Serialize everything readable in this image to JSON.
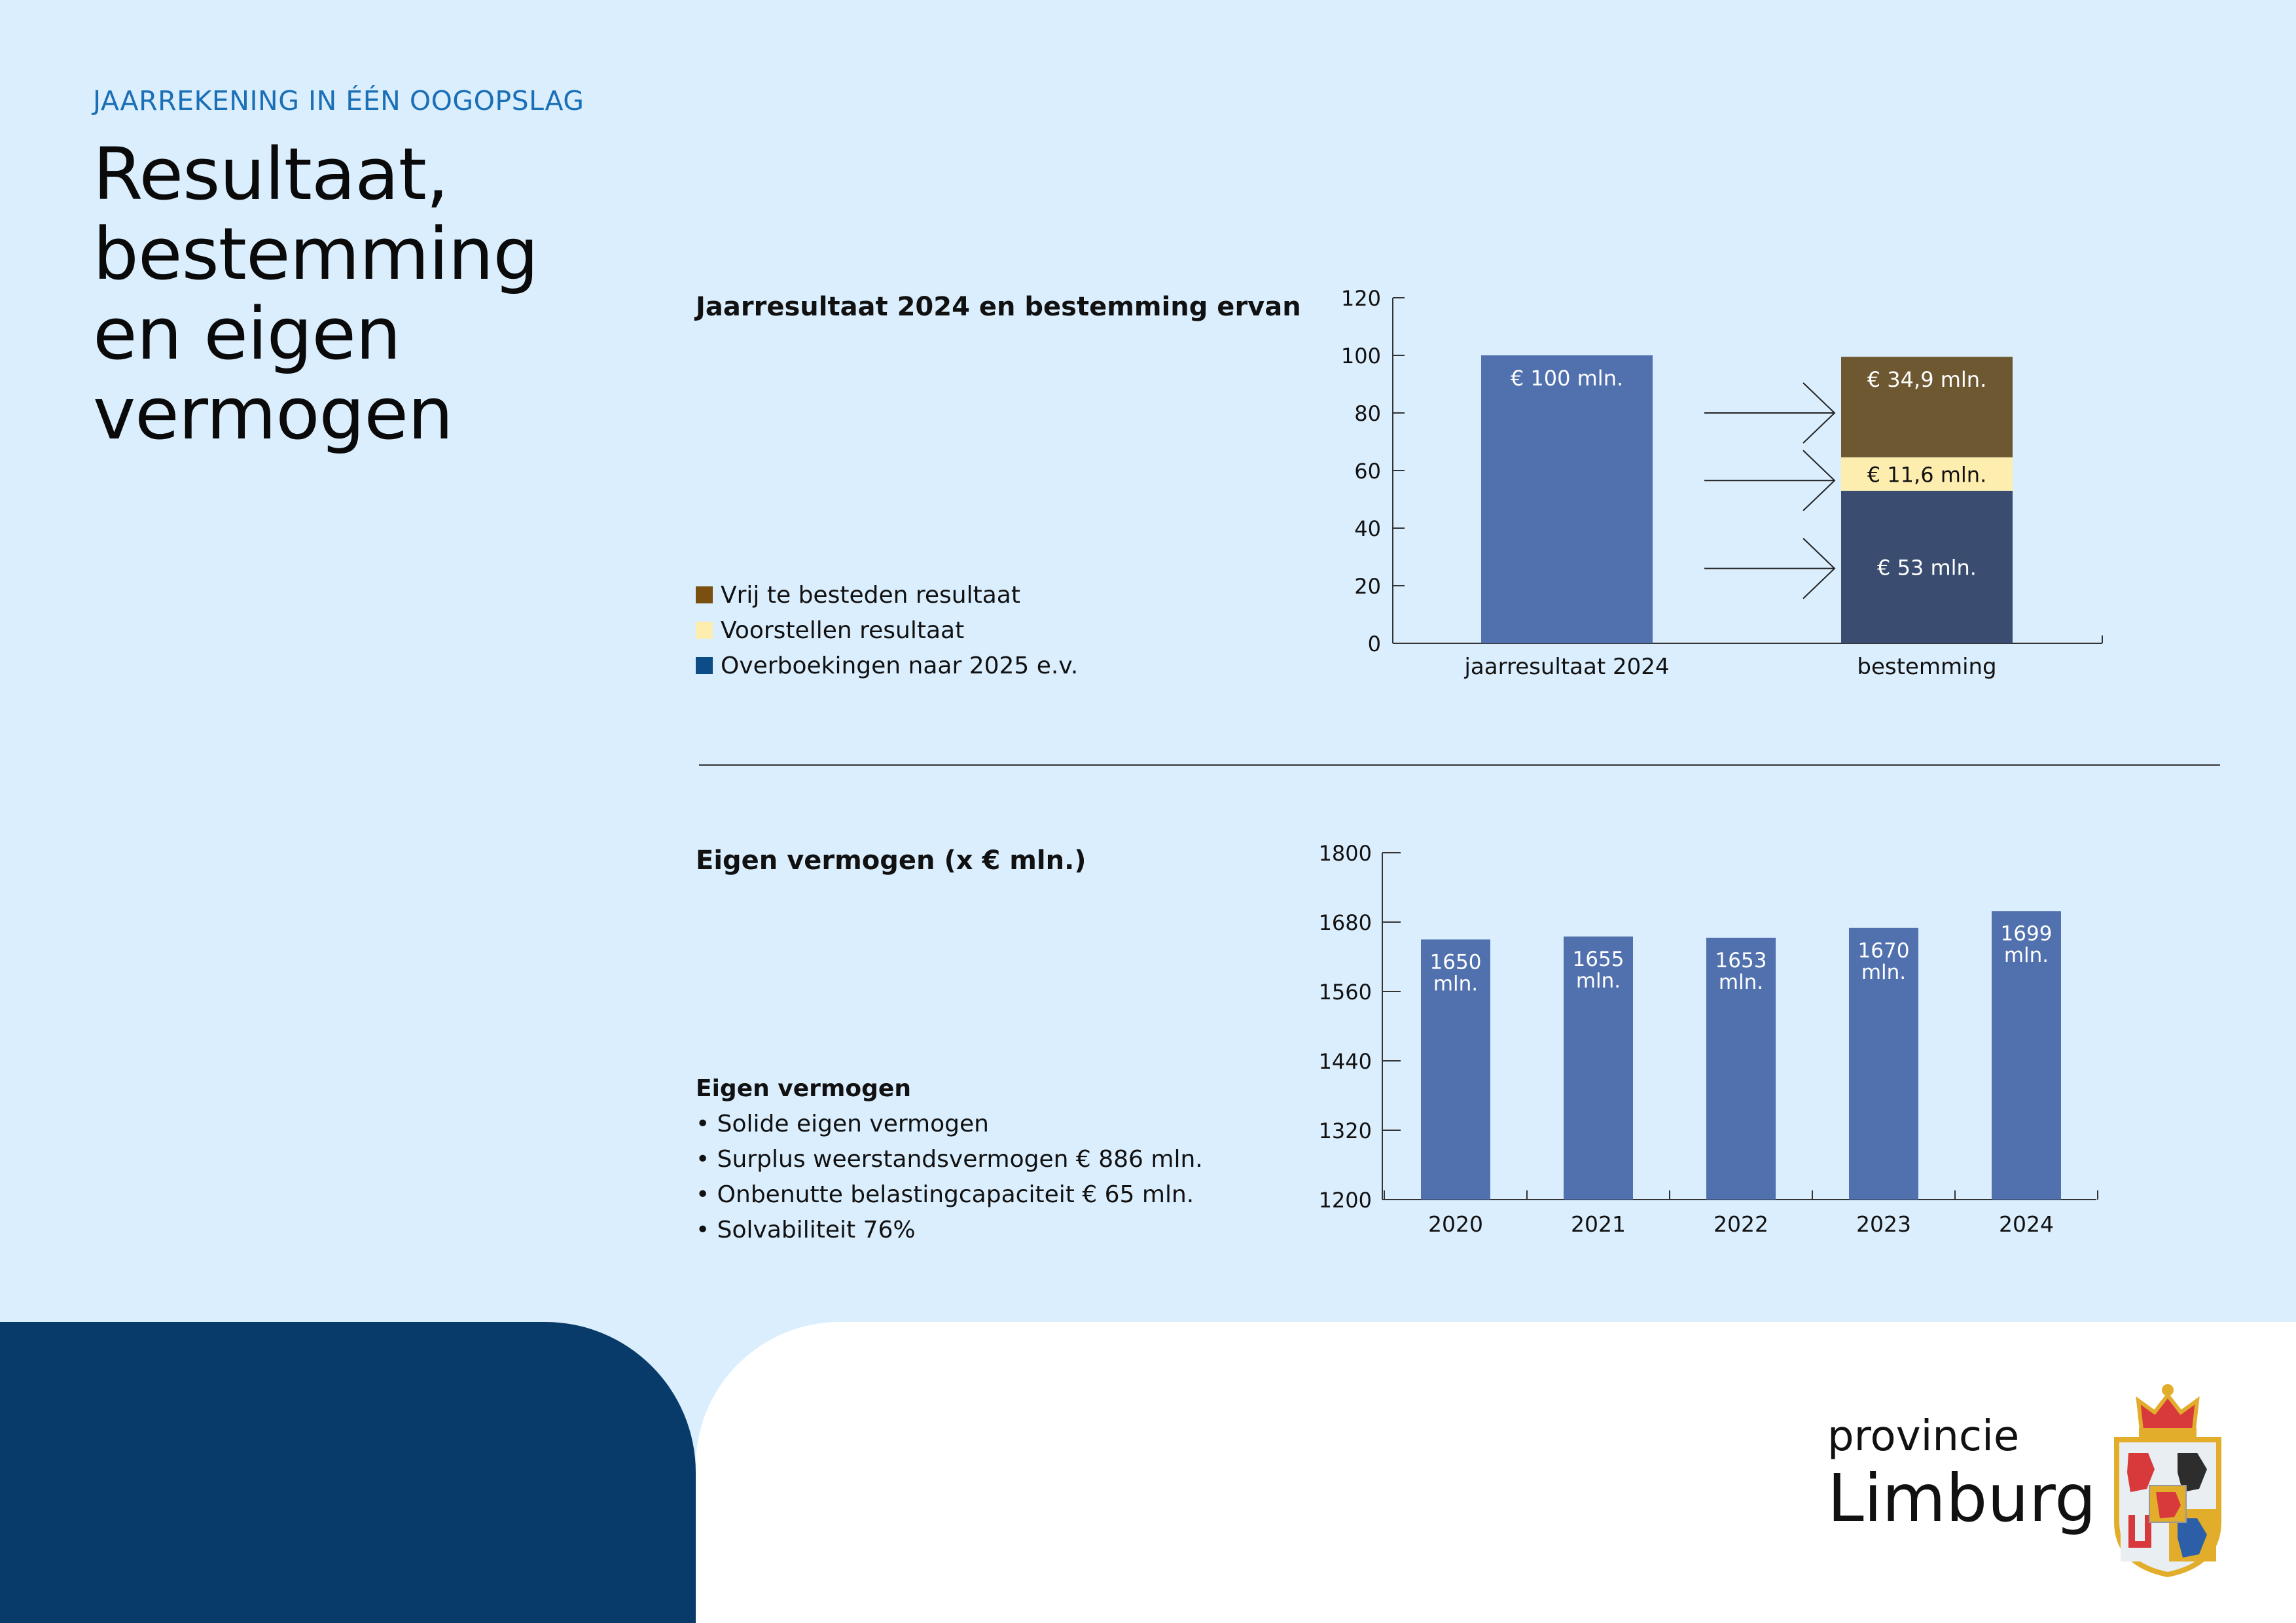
{
  "header": {
    "kicker": "JAARREKENING IN ÉÉN OOGOPSLAG",
    "title_lines": [
      "Resultaat,",
      "bestemming",
      "en eigen",
      "vermogen"
    ]
  },
  "section1": {
    "title": "Jaarresultaat 2024 en bestemming ervan",
    "legend": [
      {
        "label": "Vrij te besteden resultaat",
        "color": "#7a4f10"
      },
      {
        "label": "Voorstellen resultaat",
        "color": "#fdeeb0"
      },
      {
        "label": "Overboekingen naar 2025 e.v.",
        "color": "#0d4c86"
      }
    ]
  },
  "section2": {
    "title": "Eigen vermogen (x € mln.)",
    "notes_title": "Eigen vermogen",
    "notes": [
      "• Solide eigen vermogen",
      "• Surplus weerstandsvermogen € 886 mln.",
      "• Onbenutte belastingcapaciteit € 65 mln.",
      "• Solvabiliteit 76%"
    ]
  },
  "logo": {
    "line1": "provincie",
    "line2": "Limburg"
  },
  "chart_data": [
    {
      "type": "bar",
      "title": "Jaarresultaat 2024 en bestemming ervan",
      "categories": [
        "jaarresultaat 2024",
        "bestemming"
      ],
      "ylim": [
        0,
        120
      ],
      "yticks": [
        0,
        20,
        40,
        60,
        80,
        100,
        120
      ],
      "stacked": true,
      "series": [
        {
          "name": "Overboekingen naar 2025 e.v.",
          "values": [
            null,
            53
          ],
          "labels": [
            null,
            "€ 53 mln."
          ],
          "color": "#3a4d70"
        },
        {
          "name": "Voorstellen resultaat",
          "values": [
            null,
            11.6
          ],
          "labels": [
            null,
            "€ 11,6 mln."
          ],
          "color": "#fdeeb0"
        },
        {
          "name": "Vrij te besteden resultaat",
          "values": [
            null,
            34.9
          ],
          "labels": [
            null,
            "€ 34,9 mln."
          ],
          "color": "#6d5832"
        },
        {
          "name": "jaarresultaat 2024",
          "values": [
            100,
            null
          ],
          "labels": [
            "€ 100 mln.",
            null
          ],
          "color": "#5070ae"
        }
      ]
    },
    {
      "type": "bar",
      "title": "Eigen vermogen (x € mln.)",
      "categories": [
        "2020",
        "2021",
        "2022",
        "2023",
        "2024"
      ],
      "values": [
        1650,
        1655,
        1653,
        1670,
        1699
      ],
      "labels": [
        "1650 mln.",
        "1655 mln.",
        "1653 mln.",
        "1670 mln.",
        "1699 mln."
      ],
      "ylim": [
        1200,
        1800
      ],
      "yticks": [
        1200,
        1320,
        1440,
        1560,
        1680,
        1800
      ],
      "color": "#5070ae"
    }
  ]
}
